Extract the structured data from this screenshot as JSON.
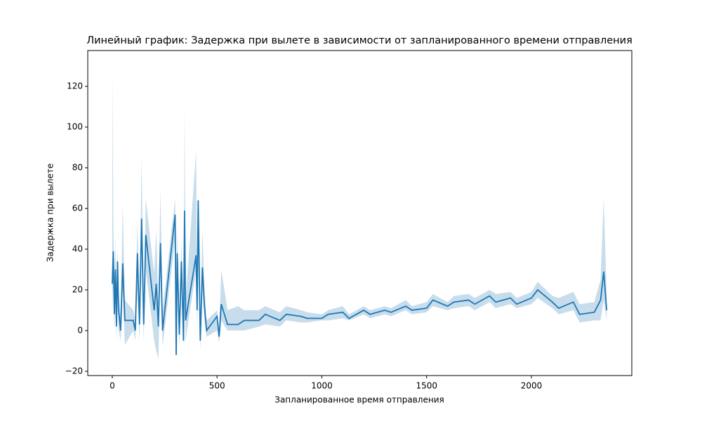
{
  "chart_data": {
    "type": "line",
    "title": "Линейный график: Задержка при вылете в зависимости от запланированного времени отправления",
    "x_label": "Запланированное время отправления",
    "y_label": "Задержка при вылете",
    "xlim": [
      -117,
      2479
    ],
    "ylim": [
      -22.1,
      137.6
    ],
    "xticks": [
      0,
      500,
      1000,
      1500,
      2000
    ],
    "yticks": [
      {
        "value": -20,
        "label": "−20"
      },
      0,
      20,
      40,
      60,
      80,
      100,
      120
    ],
    "series": [
      {
        "color": "#1f77b4",
        "x": [
          0,
          5,
          10,
          15,
          20,
          25,
          30,
          40,
          50,
          60,
          100,
          110,
          120,
          130,
          140,
          150,
          160,
          200,
          210,
          220,
          230,
          240,
          300,
          305,
          310,
          320,
          330,
          340,
          345,
          350,
          400,
          405,
          410,
          420,
          430,
          440,
          450,
          500,
          510,
          520,
          550,
          600,
          630,
          700,
          730,
          800,
          830,
          900,
          930,
          1000,
          1030,
          1100,
          1130,
          1200,
          1230,
          1300,
          1330,
          1400,
          1430,
          1500,
          1530,
          1600,
          1630,
          1700,
          1730,
          1800,
          1830,
          1900,
          1930,
          2000,
          2030,
          2100,
          2130,
          2200,
          2230,
          2300,
          2330,
          2345,
          2359
        ],
        "values": [
          23,
          39,
          8,
          30,
          2,
          34,
          10,
          0,
          33,
          5,
          5,
          0,
          38,
          3,
          55,
          3,
          47,
          10,
          23,
          2,
          43,
          0,
          57,
          -12,
          38,
          -2,
          34,
          -5,
          59,
          5,
          37,
          10,
          64,
          -5,
          31,
          12,
          0,
          7,
          -3,
          13,
          3,
          3,
          5,
          5,
          8,
          5,
          8,
          7,
          6,
          6,
          8,
          9,
          6,
          10,
          8,
          10,
          9,
          12,
          10,
          11,
          15,
          12,
          14,
          15,
          13,
          17,
          14,
          16,
          13,
          16,
          20,
          14,
          11,
          14,
          8,
          9,
          15,
          29,
          10
        ],
        "ci_low": [
          10,
          25,
          0,
          15,
          -5,
          20,
          0,
          -5,
          20,
          -7,
          0,
          -5,
          20,
          -5,
          40,
          -5,
          30,
          -5,
          -10,
          -14,
          30,
          -8,
          45,
          -13,
          25,
          -8,
          20,
          -7,
          50,
          -5,
          30,
          0,
          50,
          -10,
          20,
          5,
          -3,
          0,
          -6,
          5,
          0,
          0,
          0,
          2,
          3,
          2,
          5,
          4,
          4,
          5,
          5,
          6,
          5,
          8,
          6,
          8,
          7,
          10,
          8,
          9,
          12,
          10,
          11,
          12,
          10,
          14,
          11,
          13,
          11,
          13,
          16,
          11,
          8,
          10,
          4,
          5,
          5,
          15,
          5
        ],
        "ci_high": [
          130,
          55,
          20,
          45,
          10,
          40,
          20,
          8,
          62,
          15,
          10,
          5,
          55,
          10,
          86,
          12,
          65,
          28,
          50,
          12,
          70,
          10,
          65,
          -5,
          50,
          5,
          45,
          0,
          110,
          15,
          88,
          25,
          66,
          0,
          50,
          20,
          5,
          10,
          0,
          30,
          10,
          12,
          10,
          10,
          12,
          9,
          12,
          10,
          9,
          8,
          10,
          12,
          8,
          12,
          10,
          12,
          11,
          15,
          12,
          14,
          18,
          14,
          17,
          18,
          16,
          20,
          18,
          19,
          16,
          19,
          24,
          17,
          16,
          19,
          13,
          14,
          25,
          65,
          18
        ]
      }
    ]
  }
}
